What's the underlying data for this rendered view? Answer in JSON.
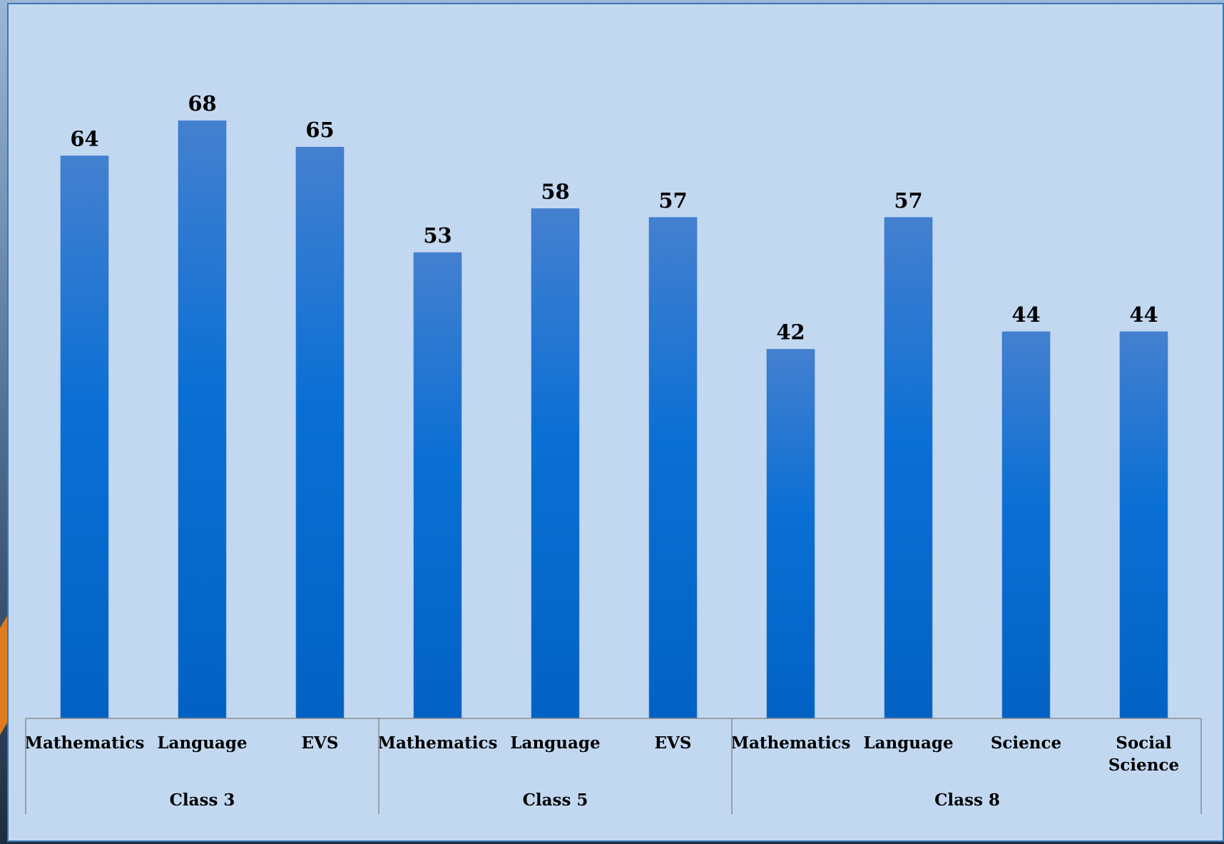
{
  "colors": {
    "panel_bg": "#c2d8f1",
    "bar_top": "#4480d0",
    "bar_mid": "#0a6fd4",
    "bar_bottom": "#0262c4",
    "axis_line": "#8c8c8c"
  },
  "chart_data": {
    "type": "bar",
    "title": "",
    "xlabel": "",
    "ylabel": "",
    "ylim": [
      0,
      75
    ],
    "grid": false,
    "legend": "none",
    "groups": [
      {
        "label": "Class 3",
        "categories": [
          "Mathematics",
          "Language",
          "EVS"
        ],
        "values": [
          64,
          68,
          65
        ]
      },
      {
        "label": "Class 5",
        "categories": [
          "Mathematics",
          "Language",
          "EVS"
        ],
        "values": [
          53,
          58,
          57
        ]
      },
      {
        "label": "Class 8",
        "categories": [
          "Mathematics",
          "Language",
          "Science",
          "Social Science"
        ],
        "values": [
          42,
          57,
          44,
          44
        ]
      }
    ]
  }
}
